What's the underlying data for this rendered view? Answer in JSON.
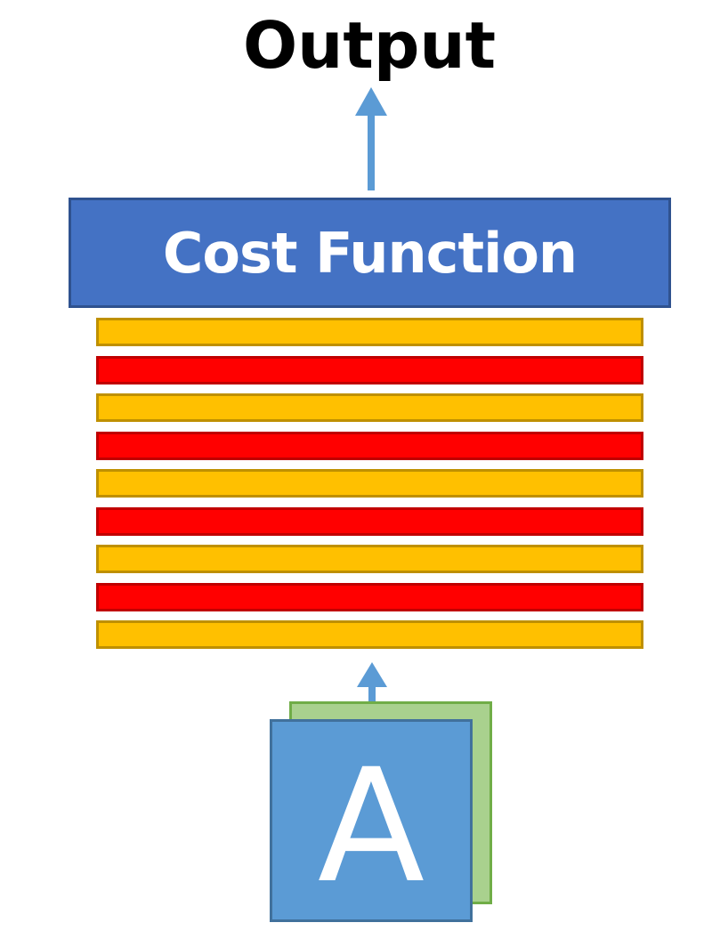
{
  "title": "Output",
  "cost_function": {
    "label": "Cost Function",
    "fill": "#4472c4",
    "border": "#2f528f"
  },
  "layers": [
    {
      "kind": "orange",
      "fill": "#ffc000",
      "border": "#bf9000"
    },
    {
      "kind": "red",
      "fill": "#ff0000",
      "border": "#c00000"
    },
    {
      "kind": "orange",
      "fill": "#ffc000",
      "border": "#bf9000"
    },
    {
      "kind": "red",
      "fill": "#ff0000",
      "border": "#c00000"
    },
    {
      "kind": "orange",
      "fill": "#ffc000",
      "border": "#bf9000"
    },
    {
      "kind": "red",
      "fill": "#ff0000",
      "border": "#c00000"
    },
    {
      "kind": "orange",
      "fill": "#ffc000",
      "border": "#bf9000"
    },
    {
      "kind": "red",
      "fill": "#ff0000",
      "border": "#c00000"
    },
    {
      "kind": "orange",
      "fill": "#ffc000",
      "border": "#bf9000"
    }
  ],
  "input": {
    "letter": "A",
    "front_fill": "#5b9bd5",
    "back_fill": "#a9d18e",
    "back_border": "#70ad47"
  },
  "arrow_color": "#5b9bd5"
}
